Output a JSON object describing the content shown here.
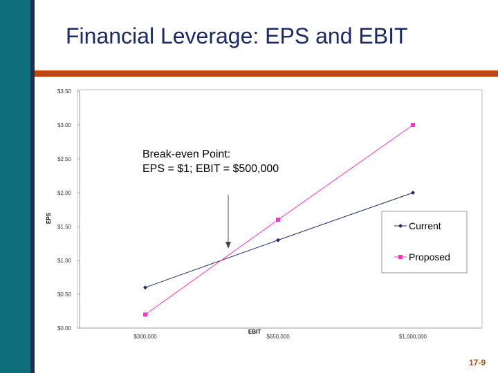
{
  "slide": {
    "title": "Financial Leverage: EPS and EBIT",
    "number": "17-9"
  },
  "colors": {
    "sidebar_teal": "#0e6f7c",
    "sidebar_navy": "#1a2f55",
    "title_rule": "#c0460f",
    "title_text": "#1b2a66",
    "current_series": "#1f2a6b",
    "proposed_series": "#ff33cc"
  },
  "chart_data": {
    "type": "line",
    "xlabel": "EBIT",
    "ylabel": "EPS",
    "categories": [
      "$300,000",
      "$650,000",
      "$1,000,000"
    ],
    "y_ticks": [
      "$0.00",
      "$0.50",
      "$1.00",
      "$1.50",
      "$2.00",
      "$2.50",
      "$3.00",
      "$3.50"
    ],
    "ylim": [
      0,
      3.5
    ],
    "grid": false,
    "legend_position": "right",
    "series": [
      {
        "name": "Current",
        "values": [
          0.6,
          1.3,
          2.0
        ],
        "color": "#1f2a6b",
        "marker": "diamond"
      },
      {
        "name": "Proposed",
        "values": [
          0.2,
          1.6,
          3.0
        ],
        "color": "#ff33cc",
        "marker": "square"
      }
    ],
    "annotation": {
      "lines": [
        "Break-even Point:",
        "EPS = $1; EBIT = $500,000"
      ],
      "target_x_index": 0.57,
      "target_y": 1.0
    }
  }
}
